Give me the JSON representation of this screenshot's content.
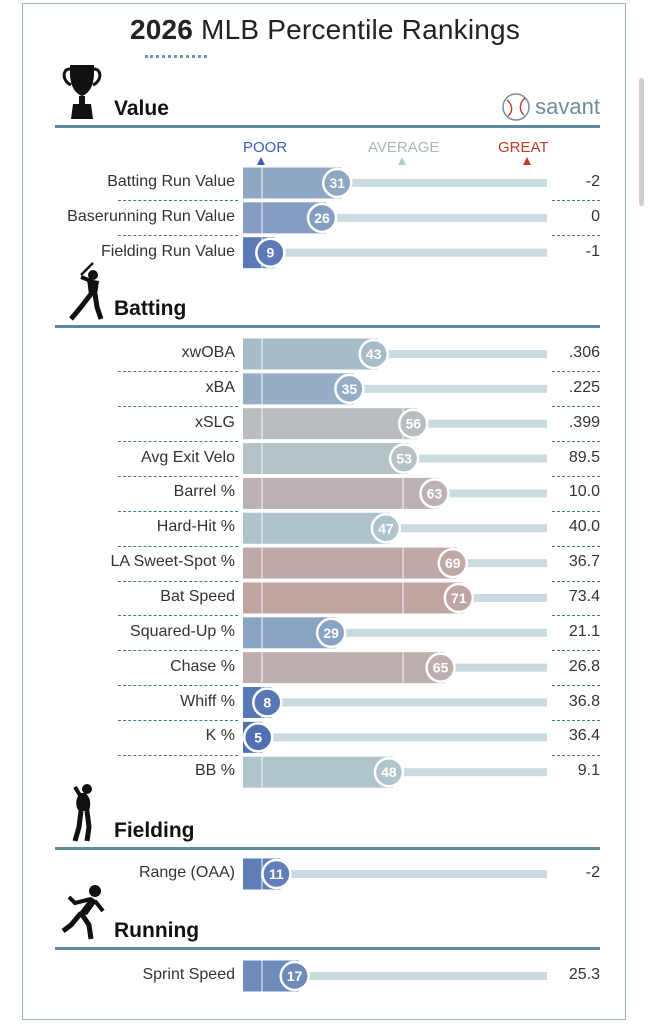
{
  "title_year": "2026",
  "title_rest": "MLB Percentile Rankings",
  "brand": "savant",
  "scale": {
    "poor": "POOR",
    "average": "AVERAGE",
    "great": "GREAT"
  },
  "colors": {
    "poor": "#3d5fb0",
    "average": "#b4c8cc",
    "great": "#d4756a",
    "rule": "#5f8a99",
    "track": "#c9dbde",
    "frame": "#9db2bc"
  },
  "sections": [
    {
      "name": "Value",
      "icon": "trophy-icon"
    },
    {
      "name": "Batting",
      "icon": "batter-icon"
    },
    {
      "name": "Fielding",
      "icon": "fielder-icon"
    },
    {
      "name": "Running",
      "icon": "runner-icon"
    }
  ],
  "chart_data": {
    "type": "bar",
    "orientation": "horizontal",
    "xlim": [
      0,
      100
    ],
    "groups": [
      {
        "section": "Value",
        "metrics": [
          {
            "label": "Batting Run Value",
            "percentile": 31,
            "value": "-2"
          },
          {
            "label": "Baserunning Run Value",
            "percentile": 26,
            "value": "0"
          },
          {
            "label": "Fielding Run Value",
            "percentile": 9,
            "value": "-1"
          }
        ]
      },
      {
        "section": "Batting",
        "metrics": [
          {
            "label": "xwOBA",
            "percentile": 43,
            "value": ".306"
          },
          {
            "label": "xBA",
            "percentile": 35,
            "value": ".225"
          },
          {
            "label": "xSLG",
            "percentile": 56,
            "value": ".399"
          },
          {
            "label": "Avg Exit Velo",
            "percentile": 53,
            "value": "89.5"
          },
          {
            "label": "Barrel %",
            "percentile": 63,
            "value": "10.0"
          },
          {
            "label": "Hard-Hit %",
            "percentile": 47,
            "value": "40.0"
          },
          {
            "label": "LA Sweet-Spot %",
            "percentile": 69,
            "value": "36.7"
          },
          {
            "label": "Bat Speed",
            "percentile": 71,
            "value": "73.4"
          },
          {
            "label": "Squared-Up %",
            "percentile": 29,
            "value": "21.1"
          },
          {
            "label": "Chase %",
            "percentile": 65,
            "value": "26.8"
          },
          {
            "label": "Whiff %",
            "percentile": 8,
            "value": "36.8"
          },
          {
            "label": "K %",
            "percentile": 5,
            "value": "36.4"
          },
          {
            "label": "BB %",
            "percentile": 48,
            "value": "9.1"
          }
        ]
      },
      {
        "section": "Fielding",
        "metrics": [
          {
            "label": "Range (OAA)",
            "percentile": 11,
            "value": "-2"
          }
        ]
      },
      {
        "section": "Running",
        "metrics": [
          {
            "label": "Sprint Speed",
            "percentile": 17,
            "value": "25.3"
          }
        ]
      }
    ]
  }
}
